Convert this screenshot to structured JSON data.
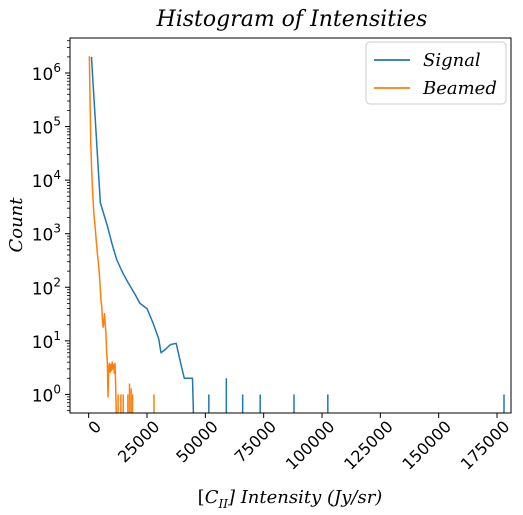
{
  "chart_data": {
    "type": "line",
    "title": "Histogram of Intensities",
    "xlabel": "[C_II] Intensity (Jy/sr)",
    "xlabel_parts": {
      "pre": "[",
      "sym": "C",
      "sub": "II",
      "post": "] Intensity (Jy/sr)"
    },
    "ylabel": "Count",
    "x_scale": "linear",
    "y_scale": "log",
    "xlim": [
      -8000,
      181000
    ],
    "ylim": [
      0.45,
      4500000
    ],
    "x_ticks": [
      0,
      25000,
      50000,
      75000,
      100000,
      125000,
      150000,
      175000
    ],
    "x_tick_labels": [
      "0",
      "25000",
      "50000",
      "75000",
      "100000",
      "125000",
      "150000",
      "175000"
    ],
    "y_ticks": [
      1,
      10,
      100,
      1000,
      10000,
      100000,
      1000000
    ],
    "y_tick_labels": [
      {
        "base": "10",
        "exp": "0"
      },
      {
        "base": "10",
        "exp": "1"
      },
      {
        "base": "10",
        "exp": "2"
      },
      {
        "base": "10",
        "exp": "3"
      },
      {
        "base": "10",
        "exp": "4"
      },
      {
        "base": "10",
        "exp": "5"
      },
      {
        "base": "10",
        "exp": "6"
      }
    ],
    "legend_position": "top-right",
    "series": [
      {
        "name": "Signal",
        "color": "#1f77b4",
        "points": [
          [
            1200,
            2000000
          ],
          [
            5000,
            3800
          ],
          [
            8000,
            1400
          ],
          [
            10000,
            650
          ],
          [
            12000,
            330
          ],
          [
            14500,
            190
          ],
          [
            17000,
            120
          ],
          [
            20000,
            72
          ],
          [
            22000,
            50
          ],
          [
            25000,
            40
          ],
          [
            27500,
            22
          ],
          [
            30000,
            11
          ],
          [
            31000,
            6
          ],
          [
            33000,
            7
          ],
          [
            35000,
            8.5
          ],
          [
            37500,
            9
          ],
          [
            40000,
            3
          ],
          [
            41000,
            2
          ],
          [
            44500,
            2
          ],
          [
            45000,
            0.3
          ]
        ],
        "spikes": [
          [
            51500,
            1
          ],
          [
            59000,
            2
          ],
          [
            66000,
            1
          ],
          [
            73500,
            1
          ],
          [
            88000,
            1
          ],
          [
            102500,
            1
          ],
          [
            178000,
            1
          ]
        ]
      },
      {
        "name": "Beamed",
        "color": "#ff7f0e",
        "points": [
          [
            0,
            2000000
          ],
          [
            300,
            2000000
          ],
          [
            600,
            300000
          ],
          [
            900,
            50000
          ],
          [
            1300,
            15000
          ],
          [
            1700,
            6000
          ],
          [
            2200,
            2500
          ],
          [
            2800,
            1300
          ],
          [
            3300,
            700
          ],
          [
            3800,
            400
          ],
          [
            4300,
            250
          ],
          [
            4700,
            150
          ],
          [
            5000,
            90
          ],
          [
            5300,
            55
          ],
          [
            5600,
            45
          ],
          [
            5900,
            25
          ],
          [
            6200,
            18
          ],
          [
            6500,
            22
          ],
          [
            6800,
            32
          ],
          [
            7100,
            20
          ],
          [
            7400,
            14
          ],
          [
            7700,
            6
          ],
          [
            8000,
            4
          ],
          [
            8300,
            0.9
          ],
          [
            8600,
            3.2
          ],
          [
            8900,
            3.8
          ],
          [
            9200,
            2.6
          ],
          [
            9500,
            3.6
          ],
          [
            9800,
            2.8
          ],
          [
            10100,
            4
          ],
          [
            10400,
            3
          ],
          [
            10700,
            3.6
          ],
          [
            11000,
            2.5
          ],
          [
            11300,
            3.8
          ],
          [
            11600,
            1.3
          ],
          [
            11900,
            0.3
          ]
        ],
        "spikes": [
          [
            12600,
            1
          ],
          [
            13800,
            1
          ],
          [
            14800,
            1
          ],
          [
            16800,
            1
          ],
          [
            17500,
            1.6
          ],
          [
            18200,
            1.3
          ],
          [
            18800,
            1
          ],
          [
            28000,
            1
          ]
        ]
      }
    ]
  }
}
